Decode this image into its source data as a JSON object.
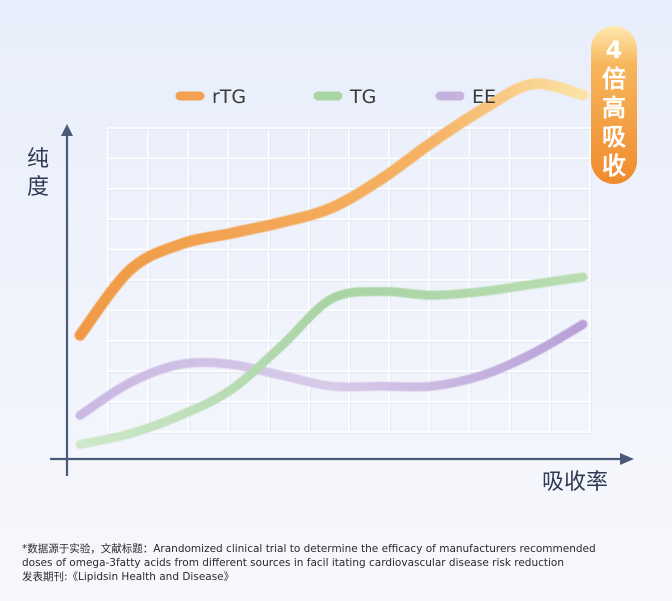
{
  "chart_data": {
    "type": "line",
    "ylabel": "纯度",
    "xlabel": "吸收率",
    "badge": "4倍高吸收",
    "legend_position": "top",
    "grid": true,
    "x": [
      0,
      1,
      2,
      3,
      4,
      5,
      6,
      7,
      8,
      9,
      10
    ],
    "ylim": [
      0,
      10
    ],
    "series": [
      {
        "name": "rTG",
        "color": "#f3a14e",
        "values": [
          3.4,
          5.2,
          5.9,
          6.2,
          6.5,
          6.9,
          7.7,
          8.7,
          9.6,
          10.3,
          10.0
        ]
      },
      {
        "name": "TG",
        "color": "#a8d4a4",
        "values": [
          0.4,
          0.7,
          1.2,
          1.9,
          3.1,
          4.4,
          4.6,
          4.5,
          4.6,
          4.8,
          5.0
        ]
      },
      {
        "name": "EE",
        "color": "#c6b2de",
        "values": [
          1.2,
          2.1,
          2.6,
          2.6,
          2.3,
          2.0,
          2.0,
          2.0,
          2.3,
          2.9,
          3.7
        ]
      }
    ]
  },
  "footnote": {
    "line1": "*数据源于实验，文献标题：Arandomized clinical trial to determine the efficacy of manufacturers    recommended",
    "line2": "doses of omega-3fatty acids from different sources in facil    itating cardiovascular disease risk reduction",
    "line3": "发表期刊:《Lipidsin Health and Disease》"
  }
}
